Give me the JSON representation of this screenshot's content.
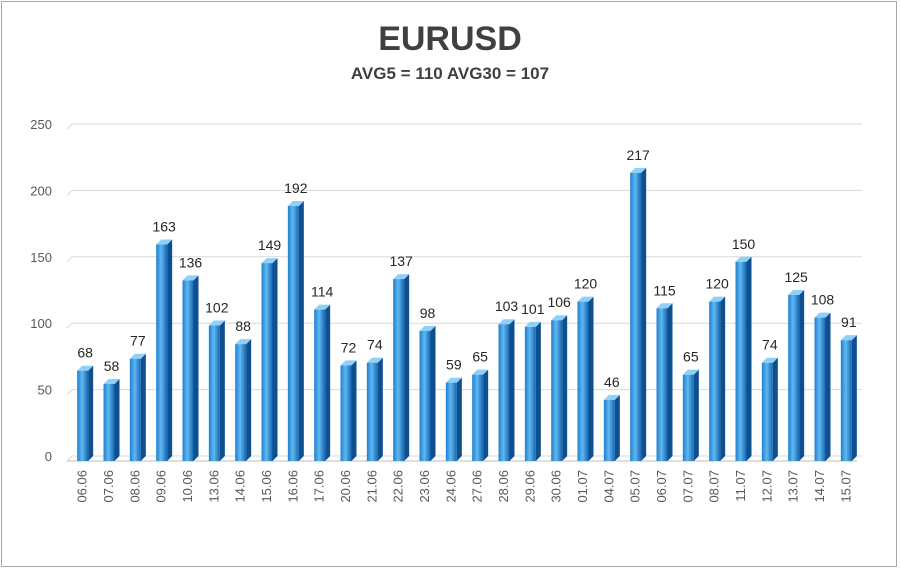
{
  "chart_data": {
    "type": "bar",
    "title": "EURUSD",
    "subtitle": "AVG5 = 110 AVG30 = 107",
    "xlabel": "",
    "ylabel": "",
    "ylim": [
      0,
      250
    ],
    "yticks": [
      0,
      50,
      100,
      150,
      200,
      250
    ],
    "grid": true,
    "legend": "none",
    "categories": [
      "06.06",
      "07.06",
      "08.06",
      "09.06",
      "10.06",
      "13.06",
      "14.06",
      "15.06",
      "16.06",
      "17.06",
      "20.06",
      "21.06",
      "22.06",
      "23.06",
      "24.06",
      "27.06",
      "28.06",
      "29.06",
      "30.06",
      "01.07",
      "04.07",
      "05.07",
      "06.07",
      "07.07",
      "08.07",
      "11.07",
      "12.07",
      "13.07",
      "14.07",
      "15.07"
    ],
    "values": [
      68,
      58,
      77,
      163,
      136,
      102,
      88,
      149,
      192,
      114,
      72,
      74,
      137,
      98,
      59,
      65,
      103,
      101,
      106,
      120,
      46,
      217,
      115,
      65,
      120,
      150,
      74,
      125,
      108,
      91
    ],
    "colors": {
      "bar_light": "#5fb8f0",
      "bar_dark": "#1565b0",
      "grid": "#d9d9d9",
      "text": "#404040"
    }
  }
}
